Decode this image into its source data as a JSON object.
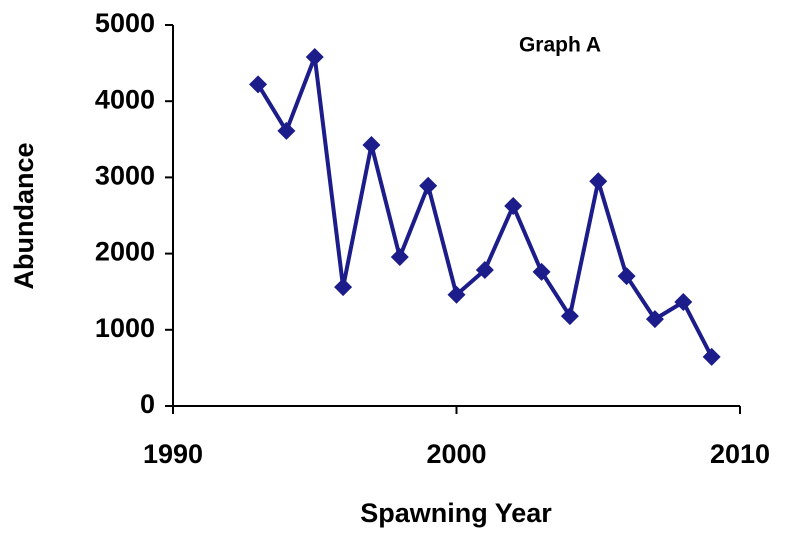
{
  "chart_data": {
    "type": "line",
    "title": "Graph A",
    "x_label": "Spawning Year",
    "y_label": "Abundance",
    "x": [
      1993,
      1994,
      1995,
      1996,
      1997,
      1998,
      1999,
      2000,
      2001,
      2002,
      2003,
      2004,
      2005,
      2006,
      2007,
      2008,
      2009
    ],
    "values": [
      4220,
      3610,
      4580,
      1560,
      3425,
      1955,
      2890,
      1460,
      1785,
      2625,
      1760,
      1180,
      2950,
      1705,
      1140,
      1365,
      645
    ],
    "color": "#1c1c8a",
    "marker": "diamond",
    "xlim": [
      1990,
      2010
    ],
    "xticks": [
      1990,
      2000,
      2010
    ],
    "ylim": [
      0,
      5000
    ],
    "yticks": [
      0,
      1000,
      2000,
      3000,
      4000,
      5000
    ],
    "grid": false
  }
}
